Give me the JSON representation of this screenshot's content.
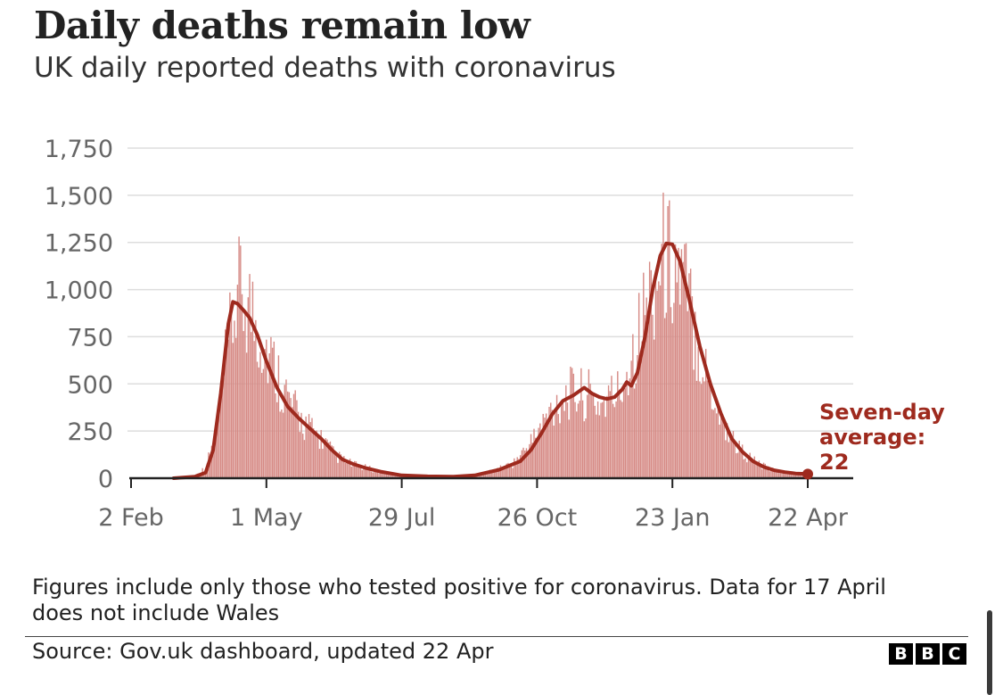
{
  "header": {
    "title": "Daily deaths remain low",
    "subtitle": "UK daily reported deaths with coronavirus"
  },
  "footer": {
    "note": "Figures include only those who tested positive for coronavirus. Data for 17 April does not include Wales",
    "source": "Source: Gov.uk dashboard, updated 22 Apr",
    "logo_letters": [
      "B",
      "B",
      "C"
    ]
  },
  "chart_data": {
    "type": "bar",
    "title": "Daily deaths remain low",
    "subtitle": "UK daily reported deaths with coronavirus",
    "x_start": "2020-02-02",
    "x_end": "2021-04-22",
    "xticks": [
      {
        "date": "2020-02-02",
        "label": "2 Feb"
      },
      {
        "date": "2020-05-01",
        "label": "1 May"
      },
      {
        "date": "2020-07-29",
        "label": "29 Jul"
      },
      {
        "date": "2020-10-26",
        "label": "26 Oct"
      },
      {
        "date": "2021-01-23",
        "label": "23 Jan"
      },
      {
        "date": "2021-04-22",
        "label": "22 Apr"
      }
    ],
    "ylim": [
      0,
      1750
    ],
    "yticks": [
      {
        "value": 0,
        "label": "0"
      },
      {
        "value": 250,
        "label": "250"
      },
      {
        "value": 500,
        "label": "500"
      },
      {
        "value": 750,
        "label": "750"
      },
      {
        "value": 1000,
        "label": "1,000"
      },
      {
        "value": 1250,
        "label": "1,250"
      },
      {
        "value": 1500,
        "label": "1,500"
      },
      {
        "value": 1750,
        "label": "1,750"
      }
    ],
    "grid": true,
    "colors": {
      "bars": "#d68a85",
      "average": "#9e2a1e",
      "grid": "#dddddd",
      "axis": "#222222"
    },
    "daily_bars_approx_weekly": [
      {
        "date": "2020-03-08",
        "value": 1
      },
      {
        "date": "2020-03-15",
        "value": 15
      },
      {
        "date": "2020-03-22",
        "value": 60
      },
      {
        "date": "2020-03-29",
        "value": 250
      },
      {
        "date": "2020-04-05",
        "value": 700
      },
      {
        "date": "2020-04-12",
        "value": 1050
      },
      {
        "date": "2020-04-19",
        "value": 1000
      },
      {
        "date": "2020-04-26",
        "value": 850
      },
      {
        "date": "2020-05-03",
        "value": 700
      },
      {
        "date": "2020-05-10",
        "value": 560
      },
      {
        "date": "2020-05-17",
        "value": 420
      },
      {
        "date": "2020-05-24",
        "value": 330
      },
      {
        "date": "2020-05-31",
        "value": 270
      },
      {
        "date": "2020-06-07",
        "value": 220
      },
      {
        "date": "2020-06-14",
        "value": 140
      },
      {
        "date": "2020-06-21",
        "value": 100
      },
      {
        "date": "2020-06-28",
        "value": 75
      },
      {
        "date": "2020-07-05",
        "value": 60
      },
      {
        "date": "2020-07-12",
        "value": 45
      },
      {
        "date": "2020-07-19",
        "value": 30
      },
      {
        "date": "2020-07-26",
        "value": 22
      },
      {
        "date": "2020-08-02",
        "value": 15
      },
      {
        "date": "2020-08-09",
        "value": 12
      },
      {
        "date": "2020-08-16",
        "value": 10
      },
      {
        "date": "2020-08-23",
        "value": 10
      },
      {
        "date": "2020-08-30",
        "value": 10
      },
      {
        "date": "2020-09-06",
        "value": 12
      },
      {
        "date": "2020-09-13",
        "value": 15
      },
      {
        "date": "2020-09-20",
        "value": 25
      },
      {
        "date": "2020-09-27",
        "value": 45
      },
      {
        "date": "2020-10-04",
        "value": 60
      },
      {
        "date": "2020-10-11",
        "value": 90
      },
      {
        "date": "2020-10-18",
        "value": 160
      },
      {
        "date": "2020-10-25",
        "value": 240
      },
      {
        "date": "2020-11-01",
        "value": 340
      },
      {
        "date": "2020-11-08",
        "value": 430
      },
      {
        "date": "2020-11-15",
        "value": 480
      },
      {
        "date": "2020-11-22",
        "value": 480
      },
      {
        "date": "2020-11-29",
        "value": 470
      },
      {
        "date": "2020-12-06",
        "value": 420
      },
      {
        "date": "2020-12-13",
        "value": 460
      },
      {
        "date": "2020-12-20",
        "value": 500
      },
      {
        "date": "2020-12-27",
        "value": 700
      },
      {
        "date": "2021-01-03",
        "value": 900
      },
      {
        "date": "2021-01-10",
        "value": 1100
      },
      {
        "date": "2021-01-17",
        "value": 1250
      },
      {
        "date": "2021-01-24",
        "value": 1230
      },
      {
        "date": "2021-01-31",
        "value": 1100
      },
      {
        "date": "2021-02-07",
        "value": 850
      },
      {
        "date": "2021-02-14",
        "value": 600
      },
      {
        "date": "2021-02-21",
        "value": 420
      },
      {
        "date": "2021-02-28",
        "value": 270
      },
      {
        "date": "2021-03-07",
        "value": 180
      },
      {
        "date": "2021-03-14",
        "value": 120
      },
      {
        "date": "2021-03-21",
        "value": 80
      },
      {
        "date": "2021-03-28",
        "value": 50
      },
      {
        "date": "2021-04-04",
        "value": 35
      },
      {
        "date": "2021-04-11",
        "value": 28
      },
      {
        "date": "2021-04-18",
        "value": 22
      },
      {
        "date": "2021-04-22",
        "value": 22
      }
    ],
    "seven_day_average": [
      {
        "date": "2020-03-01",
        "value": 0
      },
      {
        "date": "2020-03-15",
        "value": 8
      },
      {
        "date": "2020-03-22",
        "value": 30
      },
      {
        "date": "2020-03-27",
        "value": 150
      },
      {
        "date": "2020-04-01",
        "value": 450
      },
      {
        "date": "2020-04-06",
        "value": 820
      },
      {
        "date": "2020-04-09",
        "value": 935
      },
      {
        "date": "2020-04-12",
        "value": 925
      },
      {
        "date": "2020-04-16",
        "value": 890
      },
      {
        "date": "2020-04-20",
        "value": 850
      },
      {
        "date": "2020-04-25",
        "value": 760
      },
      {
        "date": "2020-05-01",
        "value": 620
      },
      {
        "date": "2020-05-08",
        "value": 480
      },
      {
        "date": "2020-05-15",
        "value": 380
      },
      {
        "date": "2020-05-22",
        "value": 320
      },
      {
        "date": "2020-05-30",
        "value": 260
      },
      {
        "date": "2020-06-06",
        "value": 210
      },
      {
        "date": "2020-06-13",
        "value": 150
      },
      {
        "date": "2020-06-20",
        "value": 100
      },
      {
        "date": "2020-06-27",
        "value": 75
      },
      {
        "date": "2020-07-05",
        "value": 55
      },
      {
        "date": "2020-07-15",
        "value": 35
      },
      {
        "date": "2020-07-29",
        "value": 15
      },
      {
        "date": "2020-08-15",
        "value": 10
      },
      {
        "date": "2020-09-01",
        "value": 8
      },
      {
        "date": "2020-09-15",
        "value": 15
      },
      {
        "date": "2020-10-01",
        "value": 45
      },
      {
        "date": "2020-10-15",
        "value": 90
      },
      {
        "date": "2020-10-22",
        "value": 150
      },
      {
        "date": "2020-10-29",
        "value": 240
      },
      {
        "date": "2020-11-05",
        "value": 340
      },
      {
        "date": "2020-11-12",
        "value": 410
      },
      {
        "date": "2020-11-19",
        "value": 440
      },
      {
        "date": "2020-11-26",
        "value": 480
      },
      {
        "date": "2020-12-01",
        "value": 450
      },
      {
        "date": "2020-12-06",
        "value": 430
      },
      {
        "date": "2020-12-11",
        "value": 420
      },
      {
        "date": "2020-12-16",
        "value": 430
      },
      {
        "date": "2020-12-21",
        "value": 470
      },
      {
        "date": "2020-12-24",
        "value": 510
      },
      {
        "date": "2020-12-27",
        "value": 490
      },
      {
        "date": "2020-12-31",
        "value": 560
      },
      {
        "date": "2021-01-05",
        "value": 750
      },
      {
        "date": "2021-01-10",
        "value": 1000
      },
      {
        "date": "2021-01-15",
        "value": 1180
      },
      {
        "date": "2021-01-19",
        "value": 1245
      },
      {
        "date": "2021-01-23",
        "value": 1240
      },
      {
        "date": "2021-01-28",
        "value": 1150
      },
      {
        "date": "2021-02-03",
        "value": 950
      },
      {
        "date": "2021-02-10",
        "value": 700
      },
      {
        "date": "2021-02-17",
        "value": 500
      },
      {
        "date": "2021-02-24",
        "value": 340
      },
      {
        "date": "2021-03-03",
        "value": 210
      },
      {
        "date": "2021-03-10",
        "value": 140
      },
      {
        "date": "2021-03-17",
        "value": 90
      },
      {
        "date": "2021-03-24",
        "value": 60
      },
      {
        "date": "2021-03-31",
        "value": 42
      },
      {
        "date": "2021-04-07",
        "value": 32
      },
      {
        "date": "2021-04-14",
        "value": 25
      },
      {
        "date": "2021-04-22",
        "value": 22
      }
    ],
    "annotation": {
      "lines": [
        "Seven-day",
        "average:",
        "22"
      ],
      "value": 22,
      "date": "2021-04-22"
    }
  }
}
